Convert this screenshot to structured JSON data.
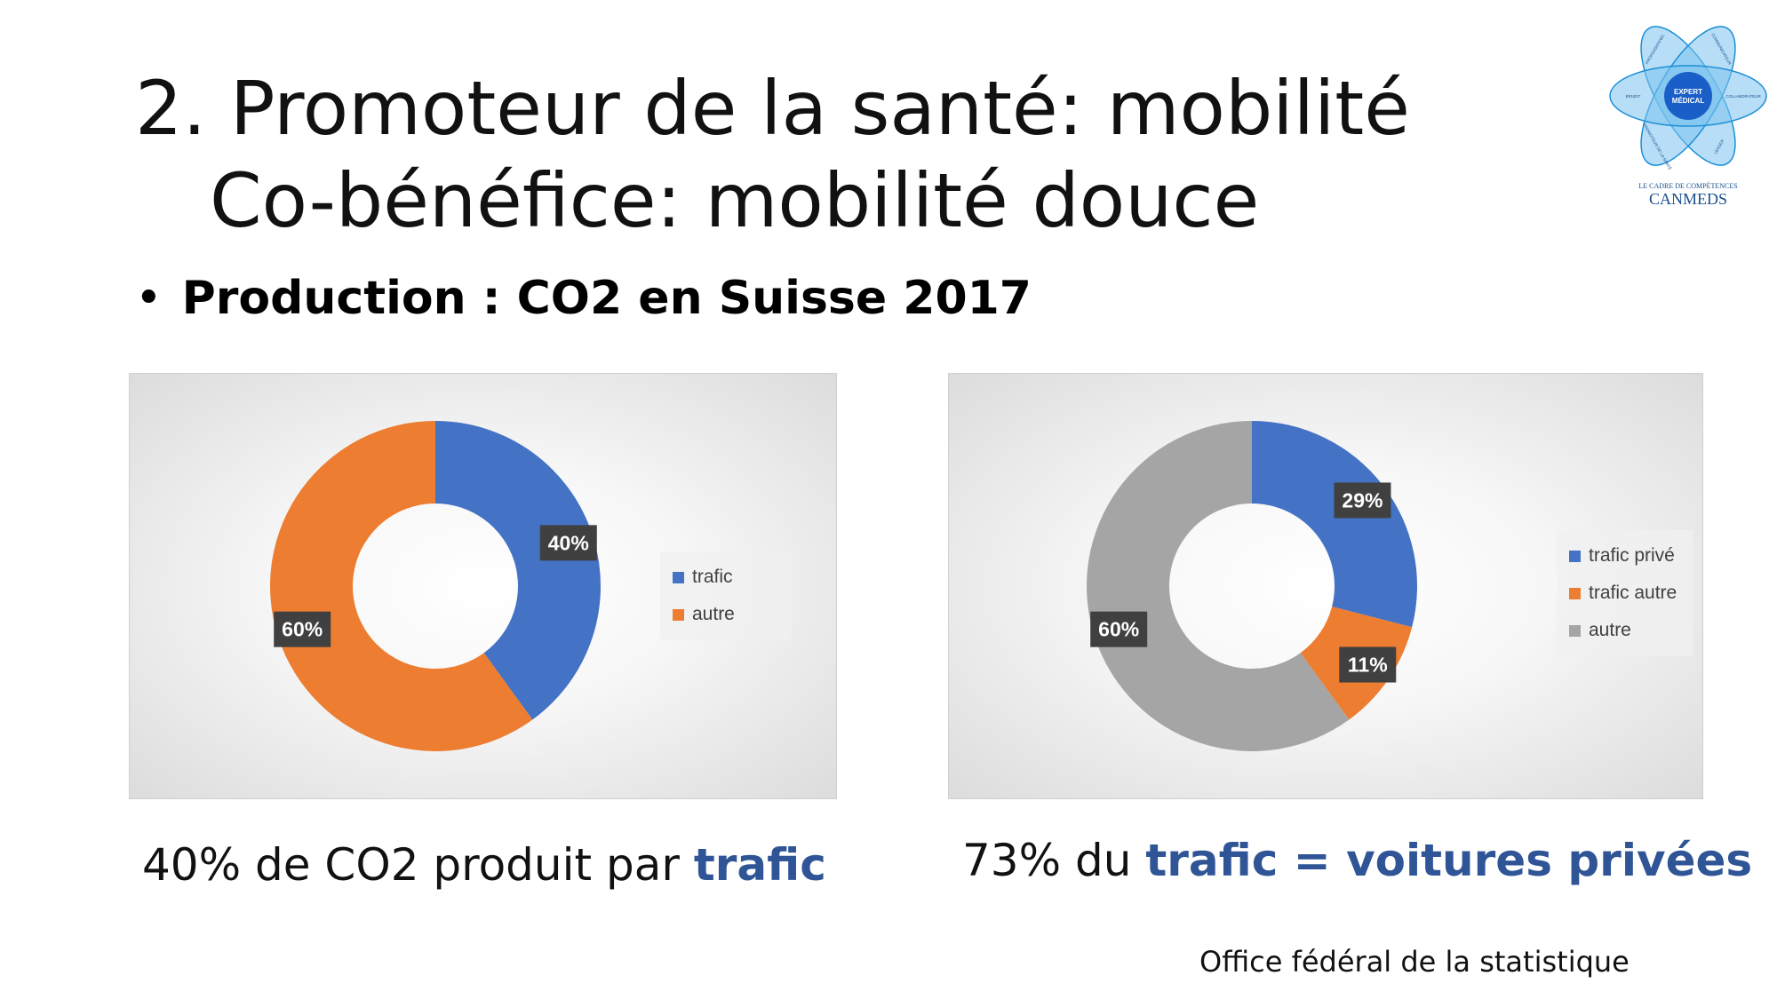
{
  "slide": {
    "title_line1": "2. Promoteur de la santé: mobilité",
    "title_line2": "Co-bénéfice: mobilité douce",
    "bullet_marker": "•",
    "bullet": "Production : CO2 en Suisse 2017",
    "caption_left_prefix": "40% de CO2 produit par ",
    "caption_left_highlight": "trafic",
    "caption_right_prefix": "73% du ",
    "caption_right_highlight": "trafic = voitures privées",
    "source": "Office fédéral de la statistique"
  },
  "logo": {
    "center_line1": "EXPERT",
    "center_line2": "MÉDICAL",
    "petals": [
      "PROFESSIONNEL",
      "COMMUNICATEUR",
      "COLLABORATEUR",
      "LEADER",
      "PROMOTEUR DE LA SANTÉ",
      "ÉRUDIT"
    ],
    "subtitle": "LE CADRE DE COMPÉTENCES",
    "brand": "CANMEDS"
  },
  "colors": {
    "blue": "#4472c4",
    "orange": "#ed7d31",
    "gray": "#a5a5a5",
    "highlight": "#2f5597",
    "logo_blue": "#1a8fd6"
  },
  "chart_data": [
    {
      "type": "pie",
      "donut": true,
      "title": "",
      "categories": [
        "trafic",
        "autre"
      ],
      "values": [
        40,
        60
      ],
      "labels": [
        "40%",
        "60%"
      ],
      "colors": [
        "#4472c4",
        "#ed7d31"
      ],
      "legend": "right"
    },
    {
      "type": "pie",
      "donut": true,
      "title": "",
      "categories": [
        "trafic privé",
        "trafic autre",
        "autre"
      ],
      "values": [
        29,
        11,
        60
      ],
      "labels": [
        "29%",
        "11%",
        "60%"
      ],
      "colors": [
        "#4472c4",
        "#ed7d31",
        "#a5a5a5"
      ],
      "legend": "right"
    }
  ]
}
